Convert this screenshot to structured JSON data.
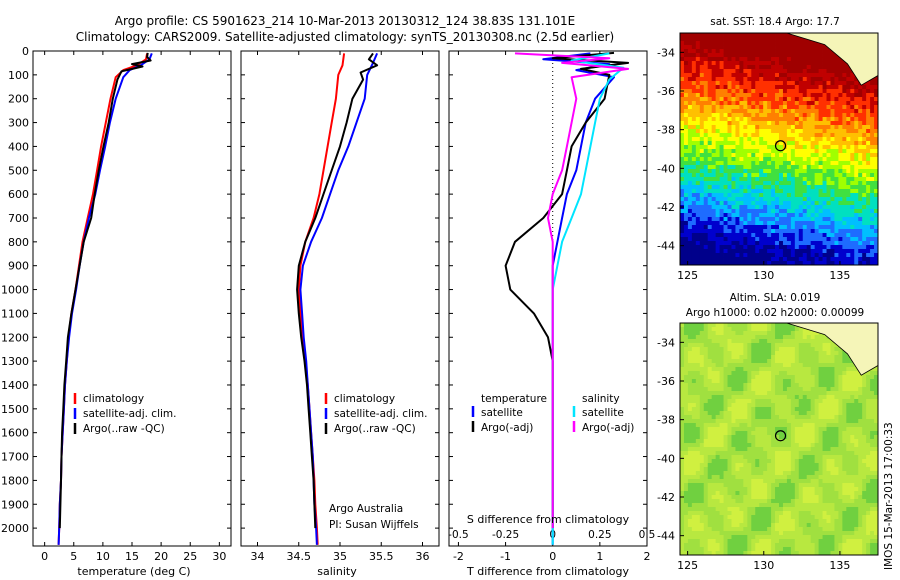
{
  "title_line1": "Argo profile: CS 5901623_214 10-Mar-2013 20130312_124 38.83S 131.101E",
  "title_line2": "Climatology: CARS2009. Satellite-adjusted climatology: synTS_20130308.nc (2.5d earlier)",
  "credit": {
    "line1": "Argo Australia",
    "line2": "PI: Susan Wijffels"
  },
  "stamp": "IMOS 15-Mar-2013 17:00:33",
  "colors": {
    "climatology": "#ff0000",
    "satellite": "#0000ff",
    "argo": "#000000",
    "sal_satellite": "#00e5ff",
    "sal_argo": "#ff00ff"
  },
  "chart_data": [
    {
      "type": "line",
      "xlabel": "temperature (deg C)",
      "xlim": [
        -2,
        32
      ],
      "ylim": [
        2075,
        0
      ],
      "xticks": [
        0,
        5,
        10,
        15,
        20,
        25,
        30
      ],
      "yticks": [
        0,
        100,
        200,
        300,
        400,
        500,
        600,
        700,
        800,
        900,
        1000,
        1100,
        1200,
        1300,
        1400,
        1500,
        1600,
        1700,
        1800,
        1900,
        2000
      ],
      "legend": [
        "climatology",
        "satellite-adj. clim.",
        "Argo(..raw -QC)"
      ],
      "series": [
        {
          "name": "climatology",
          "color": "#ff0000",
          "points": [
            [
              17.6,
              10
            ],
            [
              17.4,
              35
            ],
            [
              15.8,
              60
            ],
            [
              13.5,
              80
            ],
            [
              12.2,
              110
            ],
            [
              11.3,
              200
            ],
            [
              10.5,
              300
            ],
            [
              9.7,
              400
            ],
            [
              9.0,
              500
            ],
            [
              8.3,
              600
            ],
            [
              7.4,
              700
            ],
            [
              6.5,
              800
            ],
            [
              5.9,
              900
            ],
            [
              5.3,
              1000
            ],
            [
              4.6,
              1100
            ],
            [
              4.1,
              1200
            ],
            [
              3.8,
              1300
            ],
            [
              3.5,
              1400
            ],
            [
              3.3,
              1500
            ],
            [
              3.1,
              1600
            ],
            [
              2.9,
              1700
            ],
            [
              2.8,
              1800
            ],
            [
              2.6,
              1900
            ],
            [
              2.5,
              2000
            ],
            [
              2.4,
              2070
            ]
          ]
        },
        {
          "name": "satellite-adj. clim.",
          "color": "#0000ff",
          "points": [
            [
              18.4,
              10
            ],
            [
              18.0,
              35
            ],
            [
              16.5,
              60
            ],
            [
              14.6,
              80
            ],
            [
              13.5,
              110
            ],
            [
              12.2,
              200
            ],
            [
              11.2,
              300
            ],
            [
              10.4,
              400
            ],
            [
              9.5,
              500
            ],
            [
              8.7,
              600
            ],
            [
              7.6,
              700
            ],
            [
              6.7,
              800
            ],
            [
              6.0,
              900
            ],
            [
              5.4,
              1000
            ],
            [
              4.7,
              1100
            ],
            [
              4.2,
              1200
            ],
            [
              3.8,
              1300
            ],
            [
              3.5,
              1400
            ],
            [
              3.3,
              1500
            ],
            [
              3.1,
              1600
            ],
            [
              2.9,
              1700
            ],
            [
              2.8,
              1800
            ],
            [
              2.6,
              1900
            ],
            [
              2.5,
              2000
            ],
            [
              2.4,
              2070
            ]
          ]
        },
        {
          "name": "Argo(..raw -QC)",
          "color": "#000000",
          "points": [
            [
              17.7,
              8
            ],
            [
              17.6,
              25
            ],
            [
              18.2,
              40
            ],
            [
              15.0,
              55
            ],
            [
              16.8,
              65
            ],
            [
              13.2,
              85
            ],
            [
              12.5,
              120
            ],
            [
              11.7,
              200
            ],
            [
              11.0,
              300
            ],
            [
              10.1,
              400
            ],
            [
              9.3,
              500
            ],
            [
              8.6,
              600
            ],
            [
              8.0,
              700
            ],
            [
              6.7,
              800
            ],
            [
              6.0,
              900
            ],
            [
              5.3,
              1000
            ],
            [
              4.6,
              1100
            ],
            [
              4.0,
              1200
            ],
            [
              3.7,
              1300
            ],
            [
              3.4,
              1400
            ],
            [
              3.2,
              1500
            ],
            [
              3.0,
              1600
            ],
            [
              2.9,
              1700
            ],
            [
              2.8,
              1800
            ],
            [
              2.7,
              1900
            ],
            [
              2.6,
              2000
            ]
          ]
        }
      ]
    },
    {
      "type": "line",
      "xlabel": "salinity",
      "xlim": [
        33.8,
        36.2
      ],
      "ylim": [
        2075,
        0
      ],
      "xticks": [
        34,
        34.5,
        35,
        35.5,
        36
      ],
      "legend": [
        "climatology",
        "satellite-adj. clim.",
        "Argo(..raw -QC)"
      ],
      "series": [
        {
          "name": "climatology",
          "color": "#ff0000",
          "points": [
            [
              35.05,
              10
            ],
            [
              35.03,
              60
            ],
            [
              34.98,
              100
            ],
            [
              34.95,
              200
            ],
            [
              34.9,
              300
            ],
            [
              34.85,
              400
            ],
            [
              34.8,
              500
            ],
            [
              34.75,
              600
            ],
            [
              34.68,
              700
            ],
            [
              34.58,
              800
            ],
            [
              34.52,
              900
            ],
            [
              34.5,
              1000
            ],
            [
              34.52,
              1100
            ],
            [
              34.55,
              1200
            ],
            [
              34.58,
              1300
            ],
            [
              34.61,
              1400
            ],
            [
              34.63,
              1500
            ],
            [
              34.65,
              1600
            ],
            [
              34.67,
              1700
            ],
            [
              34.69,
              1800
            ],
            [
              34.7,
              1900
            ],
            [
              34.72,
              2000
            ],
            [
              34.73,
              2070
            ]
          ]
        },
        {
          "name": "satellite-adj. clim.",
          "color": "#0000ff",
          "points": [
            [
              35.45,
              10
            ],
            [
              35.4,
              50
            ],
            [
              35.33,
              100
            ],
            [
              35.3,
              200
            ],
            [
              35.2,
              300
            ],
            [
              35.1,
              400
            ],
            [
              34.98,
              500
            ],
            [
              34.88,
              600
            ],
            [
              34.78,
              700
            ],
            [
              34.65,
              800
            ],
            [
              34.55,
              900
            ],
            [
              34.52,
              1000
            ],
            [
              34.54,
              1100
            ],
            [
              34.56,
              1200
            ],
            [
              34.59,
              1300
            ],
            [
              34.61,
              1400
            ],
            [
              34.63,
              1500
            ],
            [
              34.65,
              1600
            ],
            [
              34.67,
              1700
            ],
            [
              34.68,
              1800
            ],
            [
              34.69,
              1900
            ],
            [
              34.71,
              2000
            ],
            [
              34.72,
              2070
            ]
          ]
        },
        {
          "name": "Argo(..raw -QC)",
          "color": "#000000",
          "points": [
            [
              35.4,
              10
            ],
            [
              35.35,
              35
            ],
            [
              35.45,
              60
            ],
            [
              35.25,
              90
            ],
            [
              35.28,
              120
            ],
            [
              35.15,
              200
            ],
            [
              35.08,
              300
            ],
            [
              35.0,
              400
            ],
            [
              34.9,
              500
            ],
            [
              34.8,
              600
            ],
            [
              34.7,
              700
            ],
            [
              34.58,
              800
            ],
            [
              34.5,
              900
            ],
            [
              34.48,
              1000
            ],
            [
              34.5,
              1100
            ],
            [
              34.53,
              1200
            ],
            [
              34.57,
              1300
            ],
            [
              34.6,
              1400
            ],
            [
              34.62,
              1500
            ],
            [
              34.64,
              1600
            ],
            [
              34.66,
              1700
            ],
            [
              34.68,
              1800
            ],
            [
              34.69,
              1900
            ],
            [
              34.7,
              2000
            ]
          ]
        }
      ]
    },
    {
      "type": "line",
      "xlabel": "T difference from climatology",
      "xlabel_top": "S difference from climatology",
      "xlim": [
        -2.2,
        2.0
      ],
      "ylim": [
        2075,
        0
      ],
      "xticks": [
        -2,
        -1,
        0,
        1,
        2
      ],
      "top_ticks": [
        -0.5,
        -0.25,
        0,
        0.25,
        0.5
      ],
      "legend_left": {
        "title": "temperature",
        "items": [
          "satellite",
          "Argo(-adj)"
        ]
      },
      "legend_right": {
        "title": "salinity",
        "items": [
          "satellite",
          "Argo(-adj)"
        ]
      },
      "series": [
        {
          "name": "temperature satellite",
          "color": "#0000ff",
          "points": [
            [
              0.8,
              10
            ],
            [
              -0.2,
              35
            ],
            [
              1.2,
              55
            ],
            [
              0.5,
              80
            ],
            [
              1.3,
              110
            ],
            [
              0.9,
              200
            ],
            [
              0.7,
              300
            ],
            [
              0.6,
              400
            ],
            [
              0.5,
              500
            ],
            [
              0.3,
              600
            ],
            [
              0.2,
              700
            ],
            [
              0.1,
              800
            ],
            [
              0.0,
              900
            ],
            [
              0.0,
              1000
            ],
            [
              0.0,
              1100
            ],
            [
              0.0,
              1200
            ],
            [
              0.0,
              1400
            ],
            [
              0.0,
              1600
            ],
            [
              0.0,
              1800
            ],
            [
              0.0,
              2000
            ],
            [
              0.0,
              2070
            ]
          ]
        },
        {
          "name": "temperature Argo(-adj)",
          "color": "#000000",
          "points": [
            [
              1.3,
              8
            ],
            [
              0.0,
              30
            ],
            [
              1.6,
              50
            ],
            [
              0.6,
              75
            ],
            [
              1.2,
              100
            ],
            [
              1.1,
              200
            ],
            [
              0.7,
              300
            ],
            [
              0.4,
              400
            ],
            [
              0.3,
              500
            ],
            [
              0.2,
              600
            ],
            [
              -0.2,
              700
            ],
            [
              -0.8,
              800
            ],
            [
              -1.0,
              900
            ],
            [
              -0.9,
              1000
            ],
            [
              -0.4,
              1100
            ],
            [
              -0.1,
              1200
            ],
            [
              0.0,
              1300
            ],
            [
              0.0,
              1500
            ],
            [
              0.0,
              1700
            ],
            [
              0.0,
              1900
            ],
            [
              0.0,
              2000
            ]
          ]
        },
        {
          "name": "salinity satellite",
          "color": "#00e5ff",
          "points": [
            [
              1.2,
              10
            ],
            [
              0.4,
              40
            ],
            [
              1.5,
              70
            ],
            [
              1.2,
              120
            ],
            [
              1.0,
              200
            ],
            [
              0.9,
              300
            ],
            [
              0.8,
              400
            ],
            [
              0.7,
              500
            ],
            [
              0.6,
              600
            ],
            [
              0.4,
              700
            ],
            [
              0.2,
              800
            ],
            [
              0.1,
              900
            ],
            [
              0.0,
              1000
            ],
            [
              0.0,
              1200
            ],
            [
              0.0,
              1500
            ],
            [
              0.0,
              1800
            ],
            [
              0.0,
              2070
            ]
          ]
        },
        {
          "name": "salinity Argo(-adj)",
          "color": "#ff00ff",
          "points": [
            [
              -0.8,
              10
            ],
            [
              1.2,
              30
            ],
            [
              0.2,
              50
            ],
            [
              1.6,
              75
            ],
            [
              0.4,
              110
            ],
            [
              0.5,
              200
            ],
            [
              0.4,
              300
            ],
            [
              0.3,
              400
            ],
            [
              0.2,
              500
            ],
            [
              0.0,
              600
            ],
            [
              -0.1,
              700
            ],
            [
              0.0,
              800
            ],
            [
              0.0,
              900
            ],
            [
              0.0,
              1000
            ],
            [
              0.0,
              1200
            ],
            [
              0.0,
              1500
            ],
            [
              0.0,
              1800
            ],
            [
              0.0,
              2000
            ]
          ]
        }
      ]
    },
    {
      "type": "heatmap",
      "title": "sat. SST: 18.4  Argo: 17.7",
      "xlim": [
        124.5,
        137.5
      ],
      "ylim": [
        -45,
        -33
      ],
      "xticks": [
        125,
        130,
        135
      ],
      "yticks": [
        -34,
        -36,
        -38,
        -40,
        -42,
        -44
      ],
      "marker": {
        "lon": 131.101,
        "lat": -38.83
      }
    },
    {
      "type": "heatmap",
      "title": "Altim. SLA: 0.019",
      "subtitle": "Argo h1000: 0.02 h2000: 0.00099",
      "xlim": [
        124.5,
        137.5
      ],
      "ylim": [
        -45,
        -33
      ],
      "xticks": [
        125,
        130,
        135
      ],
      "yticks": [
        -34,
        -36,
        -38,
        -40,
        -42,
        -44
      ],
      "marker": {
        "lon": 131.101,
        "lat": -38.83
      }
    }
  ]
}
